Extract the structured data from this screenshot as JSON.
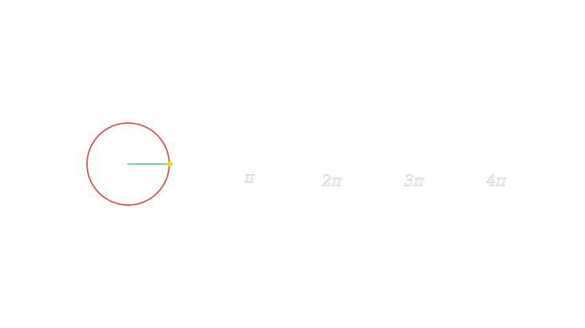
{
  "colors": {
    "background": "#ffffff",
    "circle": "#e0504a",
    "radius": "#5bc0de",
    "center_dot": "#9fd8ec",
    "point": "#f5d90a",
    "label_outline": "#c8c8c8"
  },
  "icons": {
    "unit_circle": "unit-circle-icon",
    "radius": "radius-line-icon",
    "tracer": "tracer-point-icon"
  },
  "axis": {
    "labels": [
      "π",
      "2π",
      "3π",
      "4π"
    ]
  }
}
